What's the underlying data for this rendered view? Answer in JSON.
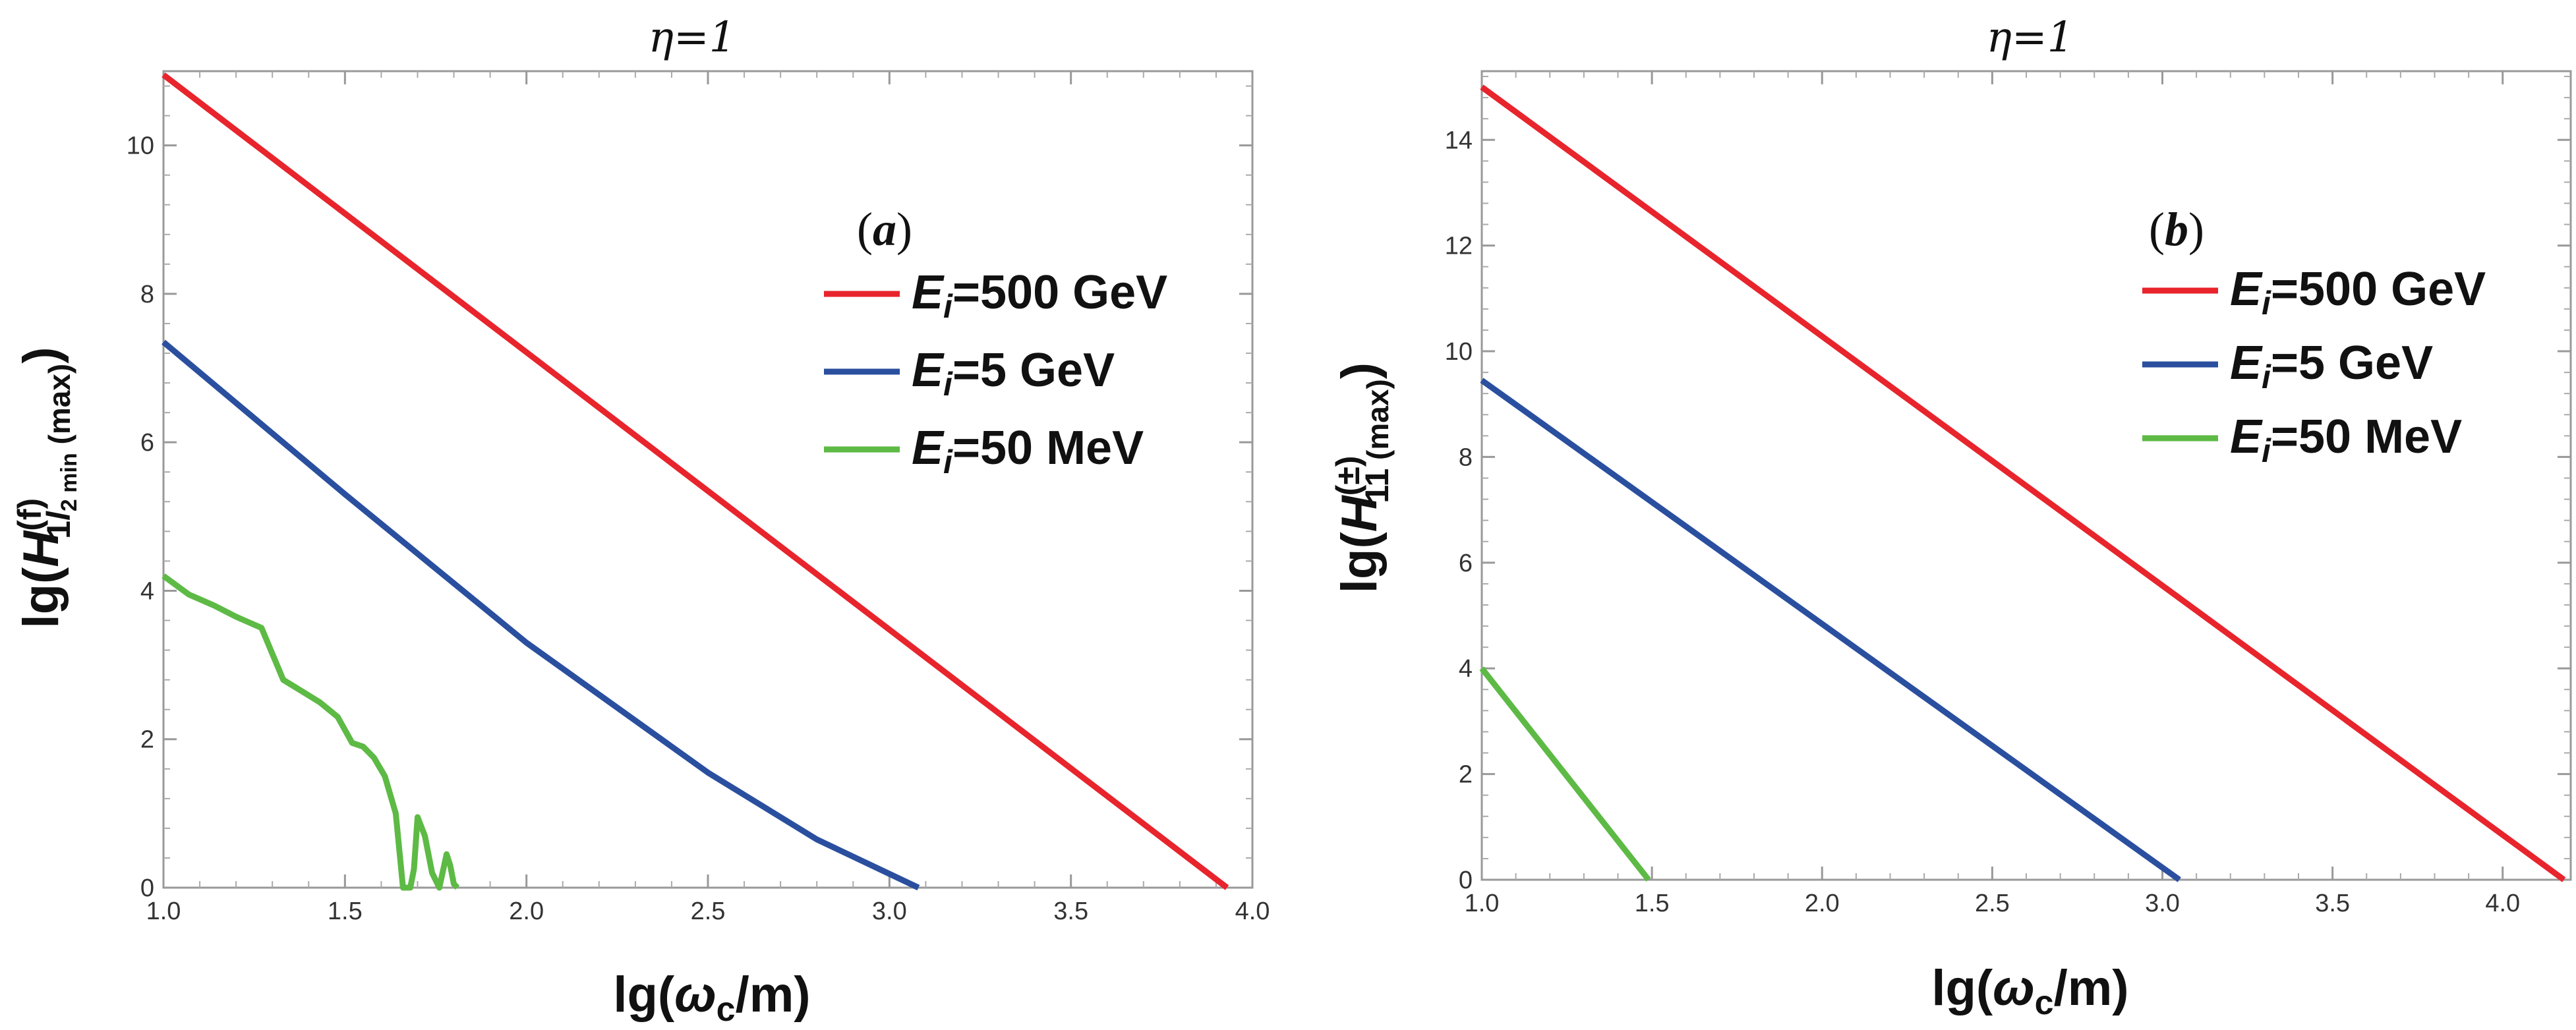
{
  "chart_data": [
    {
      "type": "line",
      "title": "η=1",
      "panel_label": "a",
      "xlabel": "lg(ωc/m)",
      "ylabel": "lg(H(f)1 l2min (max))",
      "xlim": [
        1.0,
        4.0
      ],
      "ylim": [
        0,
        11
      ],
      "xticks": [
        "1.0",
        "1.5",
        "2.0",
        "2.5",
        "3.0",
        "3.5",
        "4.0"
      ],
      "yticks": [
        "0",
        "2",
        "4",
        "6",
        "8",
        "10"
      ],
      "legend_position": "center-right",
      "series": [
        {
          "name": "Ei=500 GeV",
          "color": "#e8242c",
          "x": [
            1.0,
            3.93
          ],
          "y": [
            10.95,
            0.0
          ]
        },
        {
          "name": "Ei=5 GeV",
          "color": "#2a4f9f",
          "x": [
            1.0,
            1.5,
            2.0,
            2.5,
            2.8,
            3.08
          ],
          "y": [
            7.35,
            5.3,
            3.3,
            1.55,
            0.65,
            0.0
          ]
        },
        {
          "name": "Ei=50 MeV",
          "color": "#5dba45",
          "x": [
            1.0,
            1.07,
            1.14,
            1.2,
            1.27,
            1.33,
            1.38,
            1.43,
            1.48,
            1.52,
            1.55,
            1.58,
            1.61,
            1.64,
            1.66,
            1.67,
            1.68,
            1.69,
            1.7,
            1.72,
            1.74,
            1.76,
            1.78,
            1.79,
            1.8,
            1.81
          ],
          "y": [
            4.2,
            3.95,
            3.8,
            3.65,
            3.5,
            2.8,
            2.65,
            2.5,
            2.3,
            1.95,
            1.9,
            1.75,
            1.5,
            1.0,
            0.0,
            0.0,
            0.0,
            0.25,
            0.95,
            0.7,
            0.2,
            0.0,
            0.45,
            0.3,
            0.05,
            0.0
          ]
        }
      ],
      "legend": {
        "panel_text": "(a)",
        "items": [
          {
            "prefix": "E",
            "sub": "i",
            "value": "=500 GeV",
            "color": "#e8242c"
          },
          {
            "prefix": "E",
            "sub": "i",
            "value": "=5 GeV",
            "color": "#2a4f9f"
          },
          {
            "prefix": "E",
            "sub": "i",
            "value": "=50 MeV",
            "color": "#5dba45"
          }
        ]
      }
    },
    {
      "type": "line",
      "title": "η=1",
      "panel_label": "b",
      "xlabel": "lg(ωc/m)",
      "ylabel": "lg(H(±)11 (max))",
      "xlim": [
        1.0,
        4.2
      ],
      "ylim": [
        0,
        15.3
      ],
      "xticks": [
        "1.0",
        "1.5",
        "2.0",
        "2.5",
        "3.0",
        "3.5",
        "4.0"
      ],
      "yticks": [
        "0",
        "2",
        "4",
        "6",
        "8",
        "10",
        "12",
        "14"
      ],
      "legend_position": "center-right",
      "series": [
        {
          "name": "Ei=500 GeV",
          "color": "#e8242c",
          "x": [
            1.0,
            4.18
          ],
          "y": [
            15.0,
            0.0
          ]
        },
        {
          "name": "Ei=5 GeV",
          "color": "#2a4f9f",
          "x": [
            1.0,
            3.05
          ],
          "y": [
            9.45,
            0.0
          ]
        },
        {
          "name": "Ei=50 MeV",
          "color": "#5dba45",
          "x": [
            1.0,
            1.49
          ],
          "y": [
            4.0,
            0.0
          ]
        }
      ],
      "legend": {
        "panel_text": "(b)",
        "items": [
          {
            "prefix": "E",
            "sub": "i",
            "value": "=500 GeV",
            "color": "#e8242c"
          },
          {
            "prefix": "E",
            "sub": "i",
            "value": "=5 GeV",
            "color": "#2a4f9f"
          },
          {
            "prefix": "E",
            "sub": "i",
            "value": "=50 MeV",
            "color": "#5dba45"
          }
        ]
      }
    }
  ]
}
